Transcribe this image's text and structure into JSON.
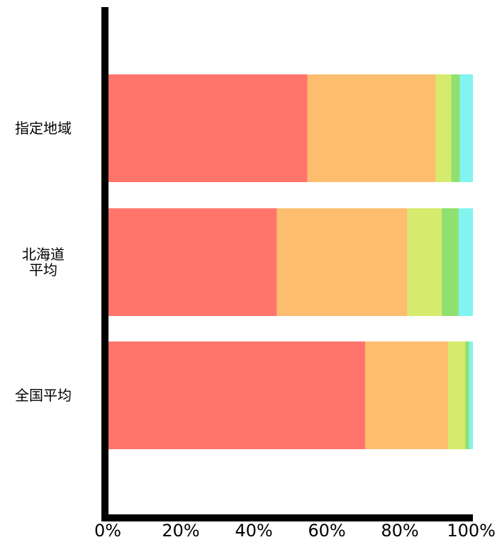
{
  "chart_data": {
    "type": "bar",
    "orientation": "horizontal",
    "stacked": true,
    "percent_stacked": true,
    "categories": [
      [
        "指定地域"
      ],
      [
        "北海道",
        "平均"
      ],
      [
        "全国平均"
      ]
    ],
    "series": [
      {
        "values": [
          54.7,
          46.3,
          70.5
        ]
      },
      {
        "values": [
          35.1,
          35.8,
          22.7
        ]
      },
      {
        "values": [
          4.3,
          9.4,
          4.7
        ]
      },
      {
        "values": [
          2.3,
          4.6,
          1.1
        ]
      },
      {
        "values": [
          3.6,
          3.9,
          1.0
        ]
      }
    ],
    "xlim": [
      0,
      100
    ],
    "xticks": [
      "0%",
      "20%",
      "40%",
      "60%",
      "80%",
      "100%"
    ],
    "title": "",
    "xlabel": "",
    "ylabel": "",
    "grid": false,
    "legend": "none",
    "colors": [
      "#ff756b",
      "#fdbd6f",
      "#d6ea6d",
      "#8fe06e",
      "#82f3f0"
    ]
  }
}
